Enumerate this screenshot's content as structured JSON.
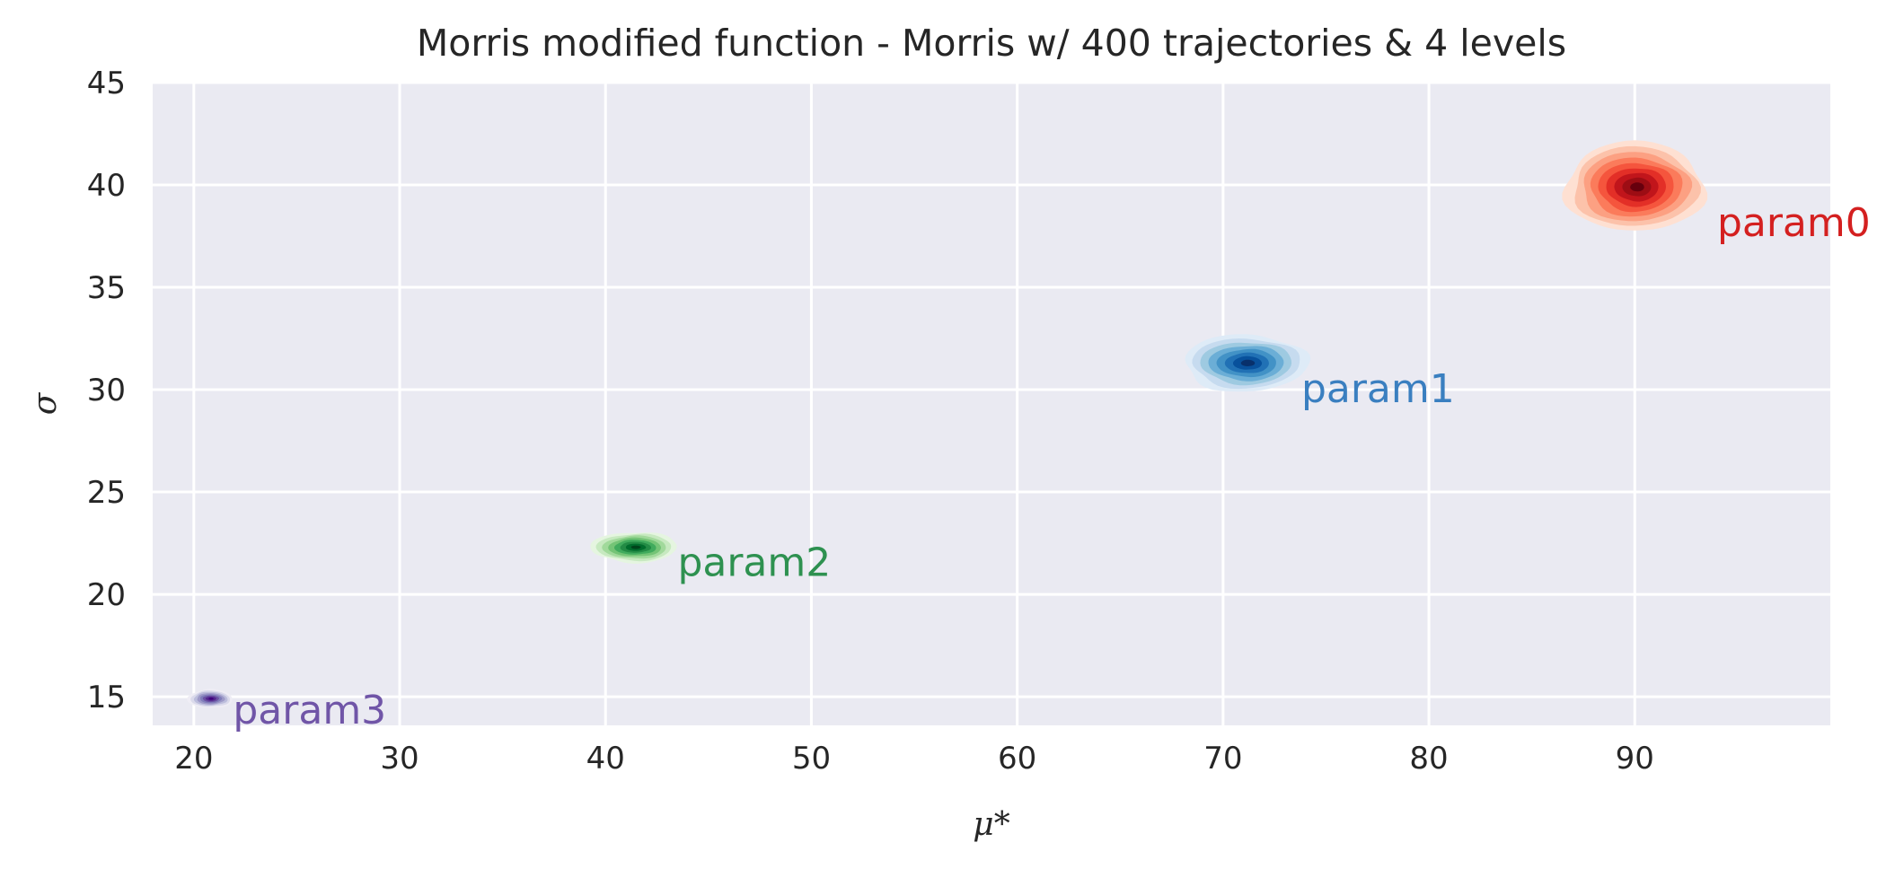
{
  "chart_data": {
    "type": "density-contour",
    "title": "Morris modified function - Morris w/ 400 trajectories & 4 levels",
    "xlabel": "μ*",
    "ylabel": "σ",
    "xlim": [
      18,
      99.5
    ],
    "ylim": [
      13.6,
      45
    ],
    "xticks": [
      20,
      30,
      40,
      50,
      60,
      70,
      80,
      90
    ],
    "yticks": [
      15,
      20,
      25,
      30,
      35,
      40,
      45
    ],
    "grid": true,
    "background_color": "#eaeaf2",
    "series": [
      {
        "name": "param0",
        "center": [
          90,
          39.9
        ],
        "spread": [
          3.4,
          2.2
        ],
        "label_at": [
          94,
          38.2
        ],
        "colors": [
          "#fee0d2",
          "#fcc2aa",
          "#fca082",
          "#fb7b5b",
          "#f5553d",
          "#e32f27",
          "#c1151b",
          "#9d0d14",
          "#67000d"
        ]
      },
      {
        "name": "param1",
        "center": [
          71.1,
          31.3
        ],
        "spread": [
          3.0,
          1.4
        ],
        "label_at": [
          73.8,
          30.1
        ],
        "colors": [
          "#deebf7",
          "#c6dbef",
          "#9ecae1",
          "#6baed6",
          "#4292c6",
          "#2171b5",
          "#08519c",
          "#08306b"
        ]
      },
      {
        "name": "param2",
        "center": [
          41.4,
          22.3
        ],
        "spread": [
          2.1,
          0.75
        ],
        "label_at": [
          43.5,
          21.6
        ],
        "colors": [
          "#e5f5e0",
          "#c7e9c0",
          "#a1d99b",
          "#74c476",
          "#41ab5d",
          "#238b45",
          "#006d2c",
          "#00441b"
        ]
      },
      {
        "name": "param3",
        "center": [
          20.8,
          14.9
        ],
        "spread": [
          1.1,
          0.45
        ],
        "label_at": [
          21.9,
          14.4
        ],
        "colors": [
          "#efedf5",
          "#dadaeb",
          "#bcbddc",
          "#9e9ac8",
          "#807dba",
          "#6a51a3",
          "#54278f",
          "#3f007d"
        ]
      }
    ],
    "label_colors": {
      "param0": "#d42020",
      "param1": "#3a7fc0",
      "param2": "#2e9150",
      "param3": "#7055a7"
    }
  }
}
